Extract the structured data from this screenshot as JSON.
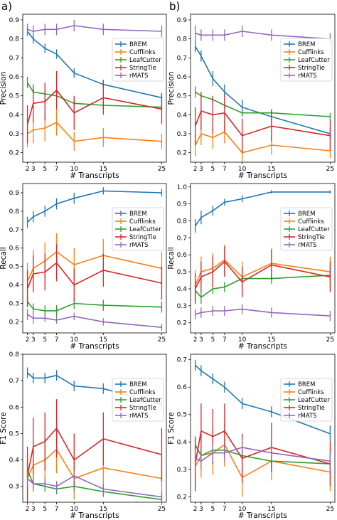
{
  "colors": {
    "BREM": "#1f77b4",
    "Cufflinks": "#ff7f0e",
    "LeafCutter": "#2ca02c",
    "StringTie": "#d62728",
    "rMATS": "#9467bd",
    "axis": "#000000",
    "legend_border": "#cccccc"
  },
  "panel_labels": {
    "a": "a)",
    "b": "b)"
  },
  "chart_data": [
    {
      "id": "a-precision",
      "type": "line",
      "panel": "a",
      "xlabel": "# Transcripts",
      "ylabel": "Precision",
      "x": [
        2,
        3,
        5,
        7,
        10,
        15,
        25
      ],
      "xticks": [
        2,
        3,
        5,
        7,
        10,
        15,
        25
      ],
      "ylim": [
        0.15,
        0.93
      ],
      "yticks": [
        0.2,
        0.3,
        0.4,
        0.5,
        0.6,
        0.7,
        0.8,
        0.9
      ],
      "ytick_labels": [
        "0.2",
        "0.3",
        "0.4",
        "0.5",
        "0.6",
        "0.7",
        "0.8",
        "0.9"
      ],
      "legend_position": "upper-right",
      "grid": false,
      "series": [
        {
          "name": "BREM",
          "color": "#1f77b4",
          "values": [
            0.84,
            0.8,
            0.75,
            0.72,
            0.62,
            0.56,
            0.49
          ],
          "errors": [
            0.025,
            0.025,
            0.025,
            0.025,
            0.025,
            0.025,
            0.025
          ]
        },
        {
          "name": "Cufflinks",
          "color": "#ff7f0e",
          "values": [
            0.3,
            0.32,
            0.33,
            0.36,
            0.26,
            0.28,
            0.26
          ],
          "errors": [
            0.07,
            0.07,
            0.07,
            0.07,
            0.05,
            0.05,
            0.04
          ]
        },
        {
          "name": "LeafCutter",
          "color": "#2ca02c",
          "values": [
            0.57,
            0.52,
            0.51,
            0.5,
            0.46,
            0.45,
            0.44
          ],
          "errors": [
            0.03,
            0.02,
            0.02,
            0.02,
            0.02,
            0.02,
            0.02
          ]
        },
        {
          "name": "StringTie",
          "color": "#d62728",
          "values": [
            0.35,
            0.46,
            0.47,
            0.53,
            0.41,
            0.49,
            0.43
          ],
          "errors": [
            0.1,
            0.1,
            0.1,
            0.1,
            0.09,
            0.09,
            0.08
          ]
        },
        {
          "name": "rMATS",
          "color": "#9467bd",
          "values": [
            0.85,
            0.84,
            0.85,
            0.85,
            0.87,
            0.85,
            0.84
          ],
          "errors": [
            0.03,
            0.03,
            0.03,
            0.03,
            0.03,
            0.03,
            0.03
          ]
        }
      ]
    },
    {
      "id": "b-precision",
      "type": "line",
      "panel": "b",
      "xlabel": "# Transcripts",
      "ylabel": "Precision",
      "x": [
        2,
        3,
        5,
        7,
        10,
        15,
        25
      ],
      "xticks": [
        2,
        3,
        5,
        7,
        10,
        15,
        25
      ],
      "ylim": [
        0.15,
        0.93
      ],
      "yticks": [
        0.2,
        0.3,
        0.4,
        0.5,
        0.6,
        0.7,
        0.8,
        0.9
      ],
      "ytick_labels": [
        "0.2",
        "0.3",
        "0.4",
        "0.5",
        "0.6",
        "0.7",
        "0.8",
        "0.9"
      ],
      "legend_position": "upper-right",
      "grid": false,
      "series": [
        {
          "name": "BREM",
          "color": "#1f77b4",
          "values": [
            0.76,
            0.71,
            0.59,
            0.52,
            0.44,
            0.39,
            0.3
          ],
          "errors": [
            0.03,
            0.03,
            0.04,
            0.04,
            0.04,
            0.04,
            0.03
          ]
        },
        {
          "name": "Cufflinks",
          "color": "#ff7f0e",
          "values": [
            0.24,
            0.3,
            0.28,
            0.31,
            0.2,
            0.24,
            0.21
          ],
          "errors": [
            0.06,
            0.06,
            0.06,
            0.06,
            0.05,
            0.05,
            0.04
          ]
        },
        {
          "name": "LeafCutter",
          "color": "#2ca02c",
          "values": [
            0.52,
            0.5,
            0.48,
            0.45,
            0.41,
            0.41,
            0.39
          ],
          "errors": [
            0.03,
            0.02,
            0.02,
            0.02,
            0.02,
            0.02,
            0.02
          ]
        },
        {
          "name": "StringTie",
          "color": "#d62728",
          "values": [
            0.34,
            0.42,
            0.4,
            0.41,
            0.29,
            0.34,
            0.29
          ],
          "errors": [
            0.1,
            0.1,
            0.1,
            0.1,
            0.09,
            0.08,
            0.08
          ]
        },
        {
          "name": "rMATS",
          "color": "#9467bd",
          "values": [
            0.83,
            0.82,
            0.82,
            0.82,
            0.84,
            0.82,
            0.8
          ],
          "errors": [
            0.04,
            0.03,
            0.03,
            0.03,
            0.03,
            0.03,
            0.03
          ]
        }
      ]
    },
    {
      "id": "a-recall",
      "type": "line",
      "panel": "a",
      "xlabel": "# Transcripts",
      "ylabel": "Recall",
      "x": [
        2,
        3,
        5,
        7,
        10,
        15,
        25
      ],
      "xticks": [
        2,
        3,
        5,
        7,
        10,
        15,
        25
      ],
      "ylim": [
        0.14,
        0.95
      ],
      "yticks": [
        0.2,
        0.3,
        0.4,
        0.5,
        0.6,
        0.7,
        0.8,
        0.9
      ],
      "ytick_labels": [
        "0.2",
        "0.3",
        "0.4",
        "0.5",
        "0.6",
        "0.7",
        "0.8",
        "0.9"
      ],
      "legend_position": "upper-right",
      "grid": false,
      "series": [
        {
          "name": "BREM",
          "color": "#1f77b4",
          "values": [
            0.74,
            0.77,
            0.8,
            0.84,
            0.87,
            0.91,
            0.9
          ],
          "errors": [
            0.03,
            0.03,
            0.03,
            0.03,
            0.03,
            0.02,
            0.02
          ]
        },
        {
          "name": "Cufflinks",
          "color": "#ff7f0e",
          "values": [
            0.42,
            0.49,
            0.53,
            0.58,
            0.51,
            0.56,
            0.49
          ],
          "errors": [
            0.1,
            0.1,
            0.1,
            0.1,
            0.09,
            0.09,
            0.09
          ]
        },
        {
          "name": "LeafCutter",
          "color": "#2ca02c",
          "values": [
            0.31,
            0.27,
            0.26,
            0.26,
            0.3,
            0.29,
            0.28
          ],
          "errors": [
            0.03,
            0.03,
            0.03,
            0.03,
            0.03,
            0.03,
            0.03
          ]
        },
        {
          "name": "StringTie",
          "color": "#d62728",
          "values": [
            0.38,
            0.46,
            0.47,
            0.52,
            0.4,
            0.48,
            0.41
          ],
          "errors": [
            0.1,
            0.1,
            0.1,
            0.1,
            0.09,
            0.09,
            0.09
          ]
        },
        {
          "name": "rMATS",
          "color": "#9467bd",
          "values": [
            0.24,
            0.22,
            0.22,
            0.21,
            0.23,
            0.2,
            0.17
          ],
          "errors": [
            0.03,
            0.03,
            0.02,
            0.02,
            0.02,
            0.02,
            0.02
          ]
        }
      ]
    },
    {
      "id": "b-recall",
      "type": "line",
      "panel": "b",
      "xlabel": "# Transcripts",
      "ylabel": "Recall",
      "x": [
        2,
        3,
        5,
        7,
        10,
        15,
        25
      ],
      "xticks": [
        2,
        3,
        5,
        7,
        10,
        15,
        25
      ],
      "ylim": [
        0.14,
        1.02
      ],
      "yticks": [
        0.2,
        0.3,
        0.4,
        0.5,
        0.6,
        0.7,
        0.8,
        0.9,
        1.0
      ],
      "ytick_labels": [
        "0.2",
        "0.3",
        "0.4",
        "0.5",
        "0.6",
        "0.7",
        "0.8",
        "0.9",
        "1.0"
      ],
      "legend_position": "upper-right",
      "grid": false,
      "series": [
        {
          "name": "BREM",
          "color": "#1f77b4",
          "values": [
            0.77,
            0.82,
            0.86,
            0.91,
            0.93,
            0.97,
            0.97
          ],
          "errors": [
            0.04,
            0.04,
            0.03,
            0.02,
            0.02,
            0.01,
            0.01
          ]
        },
        {
          "name": "Cufflinks",
          "color": "#ff7f0e",
          "values": [
            0.42,
            0.5,
            0.52,
            0.57,
            0.47,
            0.55,
            0.5
          ],
          "errors": [
            0.09,
            0.09,
            0.09,
            0.09,
            0.09,
            0.09,
            0.09
          ]
        },
        {
          "name": "LeafCutter",
          "color": "#2ca02c",
          "values": [
            0.39,
            0.35,
            0.4,
            0.41,
            0.46,
            0.46,
            0.48
          ],
          "errors": [
            0.05,
            0.04,
            0.03,
            0.03,
            0.03,
            0.03,
            0.03
          ]
        },
        {
          "name": "StringTie",
          "color": "#d62728",
          "values": [
            0.4,
            0.47,
            0.5,
            0.56,
            0.44,
            0.54,
            0.47
          ],
          "errors": [
            0.09,
            0.09,
            0.09,
            0.09,
            0.09,
            0.09,
            0.09
          ]
        },
        {
          "name": "rMATS",
          "color": "#9467bd",
          "values": [
            0.25,
            0.26,
            0.27,
            0.27,
            0.28,
            0.26,
            0.24
          ],
          "errors": [
            0.03,
            0.03,
            0.03,
            0.03,
            0.03,
            0.03,
            0.03
          ]
        }
      ]
    },
    {
      "id": "a-f1",
      "type": "line",
      "panel": "a",
      "xlabel": "# Transcripts",
      "ylabel": "F1 Score",
      "x": [
        2,
        3,
        5,
        7,
        10,
        15,
        25
      ],
      "xticks": [
        2,
        3,
        5,
        7,
        10,
        15,
        25
      ],
      "ylim": [
        0.24,
        0.8
      ],
      "yticks": [
        0.3,
        0.4,
        0.5,
        0.6,
        0.7,
        0.8
      ],
      "ytick_labels": [
        "0.3",
        "0.4",
        "0.5",
        "0.6",
        "0.7",
        "0.8"
      ],
      "legend_position": "upper-right",
      "grid": false,
      "series": [
        {
          "name": "BREM",
          "color": "#1f77b4",
          "values": [
            0.73,
            0.71,
            0.71,
            0.72,
            0.68,
            0.67,
            0.61
          ],
          "errors": [
            0.02,
            0.02,
            0.02,
            0.02,
            0.02,
            0.02,
            0.02
          ]
        },
        {
          "name": "Cufflinks",
          "color": "#ff7f0e",
          "values": [
            0.33,
            0.38,
            0.4,
            0.44,
            0.33,
            0.37,
            0.33
          ],
          "errors": [
            0.09,
            0.09,
            0.09,
            0.09,
            0.08,
            0.08,
            0.08
          ]
        },
        {
          "name": "LeafCutter",
          "color": "#2ca02c",
          "values": [
            0.36,
            0.31,
            0.3,
            0.29,
            0.3,
            0.28,
            0.25
          ],
          "errors": [
            0.03,
            0.02,
            0.02,
            0.02,
            0.02,
            0.02,
            0.02
          ]
        },
        {
          "name": "StringTie",
          "color": "#d62728",
          "values": [
            0.34,
            0.45,
            0.47,
            0.52,
            0.4,
            0.48,
            0.42
          ],
          "errors": [
            0.11,
            0.11,
            0.11,
            0.11,
            0.1,
            0.1,
            0.1
          ]
        },
        {
          "name": "rMATS",
          "color": "#9467bd",
          "values": [
            0.33,
            0.31,
            0.31,
            0.3,
            0.34,
            0.29,
            0.26
          ],
          "errors": [
            0.03,
            0.03,
            0.02,
            0.02,
            0.02,
            0.02,
            0.02
          ]
        }
      ]
    },
    {
      "id": "b-f1",
      "type": "line",
      "panel": "b",
      "xlabel": "# Transcripts",
      "ylabel": "F1 Score",
      "x": [
        2,
        3,
        5,
        7,
        10,
        15,
        25
      ],
      "xticks": [
        2,
        3,
        5,
        7,
        10,
        15,
        25
      ],
      "ylim": [
        0.18,
        0.72
      ],
      "yticks": [
        0.2,
        0.3,
        0.4,
        0.5,
        0.6,
        0.7
      ],
      "ytick_labels": [
        "0.2",
        "0.3",
        "0.4",
        "0.5",
        "0.6",
        "0.7"
      ],
      "legend_position": "upper-right",
      "grid": false,
      "series": [
        {
          "name": "BREM",
          "color": "#1f77b4",
          "values": [
            0.68,
            0.66,
            0.63,
            0.6,
            0.54,
            0.51,
            0.43
          ],
          "errors": [
            0.02,
            0.02,
            0.02,
            0.02,
            0.02,
            0.02,
            0.03
          ]
        },
        {
          "name": "Cufflinks",
          "color": "#ff7f0e",
          "values": [
            0.31,
            0.35,
            0.36,
            0.39,
            0.27,
            0.33,
            0.29
          ],
          "errors": [
            0.08,
            0.08,
            0.08,
            0.08,
            0.07,
            0.07,
            0.07
          ]
        },
        {
          "name": "LeafCutter",
          "color": "#2ca02c",
          "values": [
            0.39,
            0.35,
            0.37,
            0.37,
            0.35,
            0.33,
            0.32
          ],
          "errors": [
            0.02,
            0.02,
            0.02,
            0.02,
            0.02,
            0.02,
            0.02
          ]
        },
        {
          "name": "StringTie",
          "color": "#d62728",
          "values": [
            0.32,
            0.44,
            0.42,
            0.44,
            0.34,
            0.38,
            0.32
          ],
          "errors": [
            0.1,
            0.1,
            0.1,
            0.1,
            0.09,
            0.09,
            0.08
          ]
        },
        {
          "name": "rMATS",
          "color": "#9467bd",
          "values": [
            0.34,
            0.33,
            0.36,
            0.36,
            0.38,
            0.36,
            0.33
          ],
          "errors": [
            0.03,
            0.03,
            0.03,
            0.03,
            0.03,
            0.03,
            0.03
          ]
        }
      ]
    }
  ]
}
